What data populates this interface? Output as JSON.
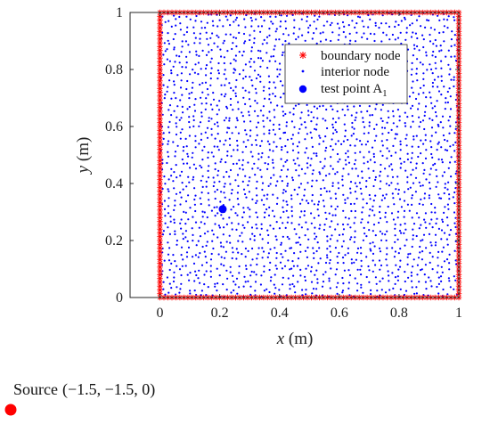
{
  "chart_data": {
    "type": "scatter",
    "xlim": [
      -0.1,
      1.0
    ],
    "ylim": [
      0,
      1
    ],
    "x_ticks": [
      "0",
      "0.2",
      "0.4",
      "0.6",
      "0.8",
      "1"
    ],
    "y_ticks": [
      "0",
      "0.2",
      "0.4",
      "0.6",
      "0.8",
      "1"
    ],
    "xlabel_var": "x",
    "xlabel_unit": " (m)",
    "ylabel_var": "y",
    "ylabel_unit": " (m)",
    "grid": false,
    "legend_position": "top-right",
    "series": [
      {
        "name": "boundary node",
        "marker": "asterisk",
        "color": "#ff0000",
        "domain": "perimeter of unit square [0,1]x[0,1]",
        "points_per_side": 75
      },
      {
        "name": "interior node",
        "marker": "dot",
        "color": "#0000ff",
        "domain": "quasi-uniform scatter inside unit square",
        "approx_count": 2300
      },
      {
        "name": "test point A",
        "name_subscript": "1",
        "marker": "filled-circle",
        "color": "#0000ff",
        "points": [
          {
            "x": 0.21,
            "y": 0.31
          }
        ]
      }
    ],
    "annotation": {
      "label": "Source",
      "coords": "(−1.5, −1.5,  0)",
      "marker_color": "#ff0000"
    }
  }
}
